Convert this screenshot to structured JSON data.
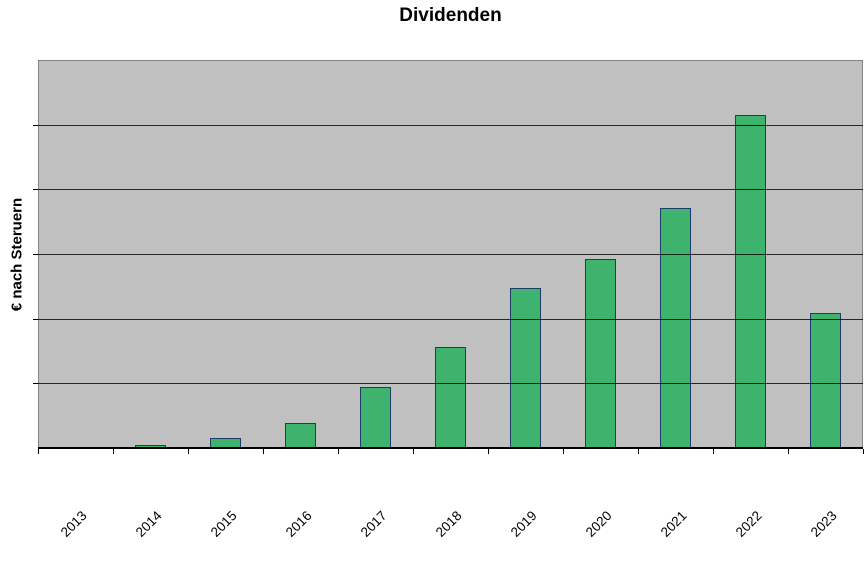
{
  "chart_data": {
    "type": "bar",
    "title": "Dividenden",
    "xlabel": "",
    "ylabel": "€ nach Steruern",
    "categories": [
      "2013",
      "2014",
      "2015",
      "2016",
      "2017",
      "2018",
      "2019",
      "2020",
      "2021",
      "2022",
      "2023"
    ],
    "values": [
      0,
      0.04,
      0.15,
      0.39,
      0.95,
      1.56,
      2.47,
      2.93,
      3.71,
      5.15,
      2.08
    ],
    "ylim": [
      0,
      6
    ],
    "y_tick_labels": [],
    "grid": true,
    "gridline_divisions": 6,
    "legend": false,
    "x_label_rotation_deg": 45,
    "colors": {
      "bar_fill": "#3db36e",
      "bar_border": "#1e3a68",
      "plot_background": "#c0c0c0",
      "plot_border": "#848484",
      "gridline": "#000000",
      "page_background": "#ffffff",
      "text": "#000000"
    }
  }
}
